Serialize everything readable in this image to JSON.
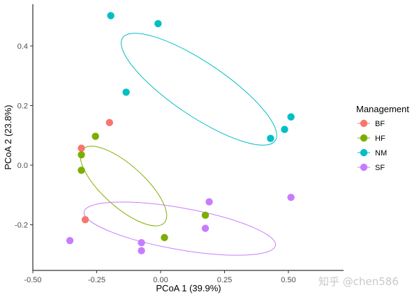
{
  "chart_data": {
    "type": "scatter",
    "xlabel": "PCoA 1 (39.9%)",
    "ylabel": "PCoA 2 (23.8%)",
    "xlim": [
      -0.5,
      0.7
    ],
    "ylim": [
      -0.35,
      0.52
    ],
    "x_ticks": [
      -0.5,
      -0.25,
      0.0,
      0.25,
      0.5
    ],
    "x_tick_labels": [
      "-0.50",
      "-0.25",
      "0.00",
      "0.25",
      "0.50"
    ],
    "y_ticks": [
      -0.2,
      0.0,
      0.2,
      0.4
    ],
    "y_tick_labels": [
      "-0.2",
      "0.0",
      "0.2",
      "0.4"
    ],
    "grid": false,
    "legend": {
      "title": "Management",
      "position": "right"
    },
    "series": [
      {
        "name": "BF",
        "color": "#F8766D",
        "points": [
          {
            "x": -0.2,
            "y": 0.143
          },
          {
            "x": -0.31,
            "y": 0.057
          },
          {
            "x": -0.295,
            "y": -0.183
          }
        ]
      },
      {
        "name": "HF",
        "color": "#7CAE00",
        "points": [
          {
            "x": -0.255,
            "y": 0.097
          },
          {
            "x": -0.31,
            "y": 0.035
          },
          {
            "x": -0.31,
            "y": -0.017
          },
          {
            "x": 0.175,
            "y": -0.168
          },
          {
            "x": 0.015,
            "y": -0.243
          }
        ],
        "ellipse": {
          "center": [
            -0.145,
            -0.07
          ],
          "rx": 0.215,
          "ry": 0.07,
          "angle_deg": 42
        }
      },
      {
        "name": "NM",
        "color": "#00BFC4",
        "points": [
          {
            "x": -0.195,
            "y": 0.502
          },
          {
            "x": -0.01,
            "y": 0.475
          },
          {
            "x": -0.135,
            "y": 0.245
          },
          {
            "x": 0.51,
            "y": 0.162
          },
          {
            "x": 0.485,
            "y": 0.12
          },
          {
            "x": 0.43,
            "y": 0.09
          }
        ],
        "ellipse": {
          "center": [
            0.15,
            0.255
          ],
          "rx": 0.36,
          "ry": 0.09,
          "angle_deg": 34
        }
      },
      {
        "name": "SF",
        "color": "#C77CFF",
        "points": [
          {
            "x": 0.19,
            "y": -0.123
          },
          {
            "x": 0.51,
            "y": -0.108
          },
          {
            "x": 0.175,
            "y": -0.212
          },
          {
            "x": -0.355,
            "y": -0.253
          },
          {
            "x": -0.075,
            "y": -0.26
          },
          {
            "x": -0.075,
            "y": -0.287
          }
        ],
        "ellipse": {
          "center": [
            0.075,
            -0.213
          ],
          "rx": 0.38,
          "ry": 0.07,
          "angle_deg": 10
        }
      }
    ]
  },
  "watermark": "知乎 @chen586"
}
